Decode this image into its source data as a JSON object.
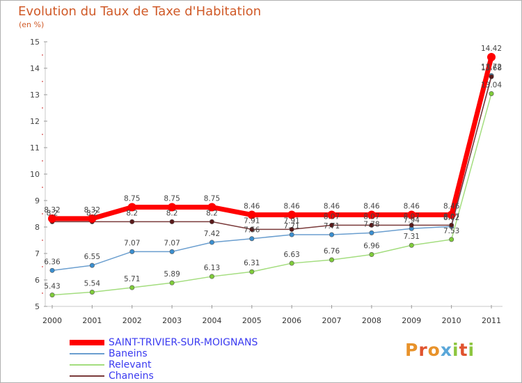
{
  "chart_data": {
    "type": "line",
    "title": "Evolution du Taux de Taxe d'Habitation",
    "units_label": "(en %)",
    "xlabel": "",
    "ylabel": "",
    "x": [
      "2000",
      "2001",
      "2002",
      "2003",
      "2004",
      "2005",
      "2006",
      "2007",
      "2008",
      "2009",
      "2010",
      "2011"
    ],
    "ylim": [
      5,
      15
    ],
    "yticks": [
      5,
      6,
      7,
      8,
      9,
      10,
      11,
      12,
      13,
      14,
      15
    ],
    "grid": false,
    "legend_position": "bottom-left",
    "series": [
      {
        "name": "SAINT-TRIVIER-SUR-MOIGNANS",
        "color": "#ff0000",
        "marker_color": "#ff0000",
        "values": [
          8.32,
          8.32,
          8.75,
          8.75,
          8.75,
          8.46,
          8.46,
          8.46,
          8.46,
          8.46,
          8.46,
          14.42
        ],
        "labels": [
          "8.32",
          "8.32",
          "8.75",
          "8.75",
          "8.75",
          "8.46",
          "8.46",
          "8.46",
          "8.46",
          "8.46",
          "8.46",
          "14.42"
        ]
      },
      {
        "name": "Baneins",
        "color": "#6a9ecf",
        "marker_color": "#3b8fd0",
        "values": [
          6.36,
          6.55,
          7.07,
          7.07,
          7.42,
          7.56,
          7.71,
          7.71,
          7.78,
          7.94,
          8.02,
          13.72
        ],
        "labels": [
          "6.36",
          "6.55",
          "7.07",
          "7.07",
          "7.42",
          "7.56",
          "7.71",
          "7.71",
          "7.78",
          "7.94",
          "8.02",
          "13.72"
        ]
      },
      {
        "name": "Relevant",
        "color": "#a3dd7e",
        "marker_color": "#7fcc3a",
        "values": [
          5.43,
          5.54,
          5.71,
          5.89,
          6.13,
          6.31,
          6.63,
          6.76,
          6.96,
          7.31,
          7.53,
          13.04
        ],
        "labels": [
          "5.43",
          "5.54",
          "5.71",
          "5.89",
          "6.13",
          "6.31",
          "6.63",
          "6.76",
          "6.96",
          "7.31",
          "7.53",
          "13.04"
        ]
      },
      {
        "name": "Chaneins",
        "color": "#7a3a3a",
        "marker_color": "#5a1a1a",
        "values": [
          8.2,
          8.2,
          8.2,
          8.2,
          8.2,
          7.91,
          7.91,
          8.07,
          8.07,
          8.07,
          8.07,
          13.68
        ],
        "labels": [
          "8.2",
          "8.2",
          "8.2",
          "8.2",
          "8.2",
          "7.91",
          "7.91",
          "8.07",
          "8.07",
          "8.07",
          "8.07",
          "13.68"
        ]
      }
    ]
  },
  "logo": {
    "text": "Proxiti"
  }
}
